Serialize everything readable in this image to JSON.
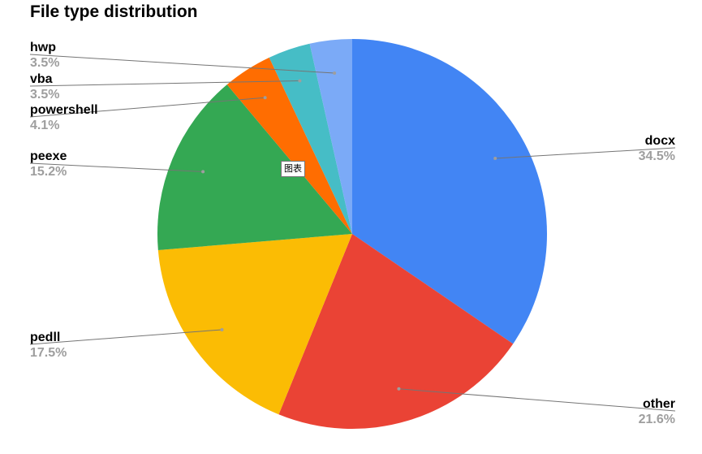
{
  "chart_data": {
    "type": "pie",
    "title": "File type distribution",
    "slices": [
      {
        "label": "docx",
        "value": 34.5,
        "display": "34.5%",
        "color": "#4285f4"
      },
      {
        "label": "other",
        "value": 21.6,
        "display": "21.6%",
        "color": "#ea4335"
      },
      {
        "label": "pedll",
        "value": 17.5,
        "display": "17.5%",
        "color": "#fbbc04"
      },
      {
        "label": "peexe",
        "value": 15.2,
        "display": "15.2%",
        "color": "#34a853"
      },
      {
        "label": "powershell",
        "value": 4.1,
        "display": "4.1%",
        "color": "#ff6d01"
      },
      {
        "label": "vba",
        "value": 3.5,
        "display": "3.5%",
        "color": "#46bdc6"
      },
      {
        "label": "hwp",
        "value": 3.5,
        "display": "3.5%",
        "color": "#7baaf7"
      }
    ],
    "legend": "none"
  },
  "tooltip_text": "图表"
}
